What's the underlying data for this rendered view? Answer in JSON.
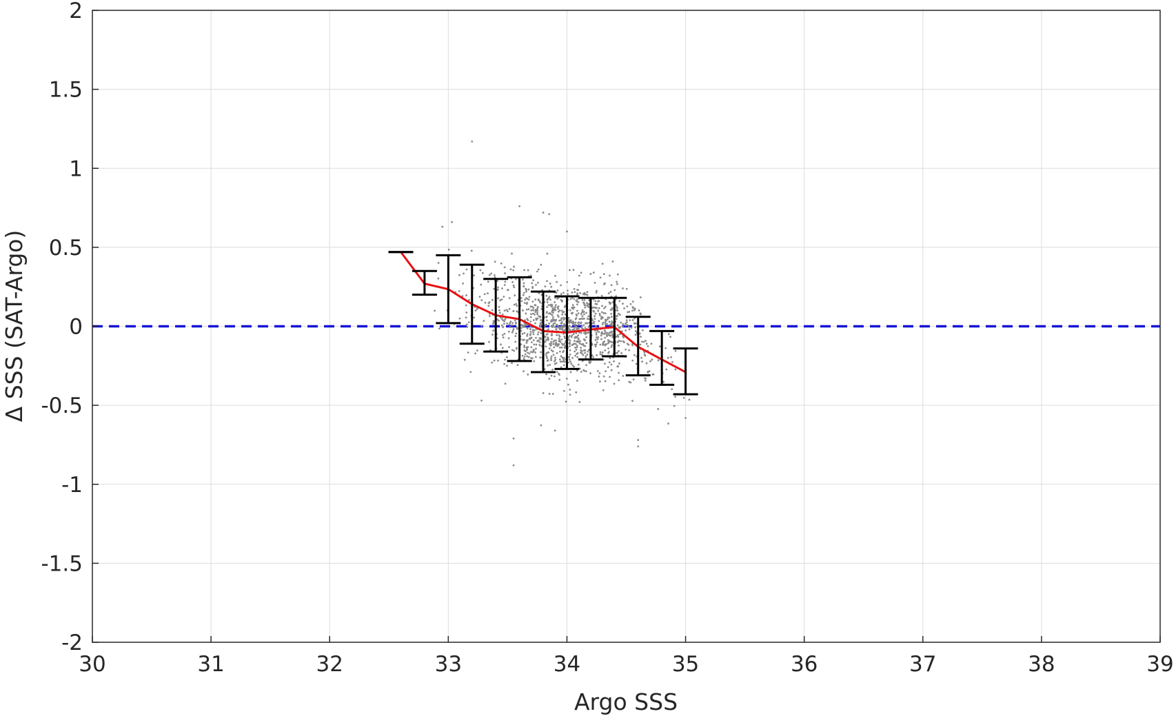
{
  "chart_data": {
    "type": "scatter",
    "xlabel": "Argo SSS",
    "ylabel": "Δ SSS (SAT-Argo)",
    "xlim": [
      30,
      39
    ],
    "ylim": [
      -2,
      2
    ],
    "x_ticks": [
      "30",
      "31",
      "32",
      "33",
      "34",
      "35",
      "36",
      "37",
      "38",
      "39"
    ],
    "y_ticks": [
      "2",
      "1.5",
      "1",
      "0.5",
      "0",
      "-0.5",
      "-1",
      "-1.5",
      "-2"
    ],
    "grid": true,
    "zero_line": {
      "y": 0,
      "color": "#1515d6",
      "style": "dashed"
    },
    "scatter_color": "#8a8a8a",
    "mean_line_color": "#e81212",
    "errorbar_color": "#000000",
    "binned_stats": [
      {
        "x": 32.6,
        "mean": 0.47,
        "low": 0.47,
        "high": 0.47
      },
      {
        "x": 32.8,
        "mean": 0.27,
        "low": 0.2,
        "high": 0.35
      },
      {
        "x": 33.0,
        "mean": 0.235,
        "low": 0.02,
        "high": 0.45
      },
      {
        "x": 33.2,
        "mean": 0.14,
        "low": -0.11,
        "high": 0.39
      },
      {
        "x": 33.4,
        "mean": 0.07,
        "low": -0.16,
        "high": 0.3
      },
      {
        "x": 33.6,
        "mean": 0.045,
        "low": -0.22,
        "high": 0.31
      },
      {
        "x": 33.8,
        "mean": -0.03,
        "low": -0.29,
        "high": 0.22
      },
      {
        "x": 34.0,
        "mean": -0.04,
        "low": -0.27,
        "high": 0.19
      },
      {
        "x": 34.2,
        "mean": -0.02,
        "low": -0.21,
        "high": 0.18
      },
      {
        "x": 34.4,
        "mean": -0.005,
        "low": -0.19,
        "high": 0.18
      },
      {
        "x": 34.6,
        "mean": -0.13,
        "low": -0.31,
        "high": 0.06
      },
      {
        "x": 34.8,
        "mean": -0.21,
        "low": -0.37,
        "high": -0.03
      },
      {
        "x": 35.0,
        "mean": -0.29,
        "low": -0.43,
        "high": -0.14
      }
    ],
    "scatter_outliers": [
      {
        "x": 33.2,
        "y": 1.17
      },
      {
        "x": 33.6,
        "y": 0.76
      },
      {
        "x": 33.8,
        "y": 0.72
      },
      {
        "x": 33.85,
        "y": 0.71
      },
      {
        "x": 34.0,
        "y": 0.6
      },
      {
        "x": 33.03,
        "y": 0.66
      },
      {
        "x": 32.95,
        "y": 0.63
      },
      {
        "x": 33.55,
        "y": -0.71
      },
      {
        "x": 33.55,
        "y": -0.88
      },
      {
        "x": 33.9,
        "y": -0.66
      },
      {
        "x": 34.6,
        "y": -0.76
      },
      {
        "x": 34.6,
        "y": -0.72
      },
      {
        "x": 35.0,
        "y": -0.58
      },
      {
        "x": 33.28,
        "y": -0.47
      }
    ]
  }
}
